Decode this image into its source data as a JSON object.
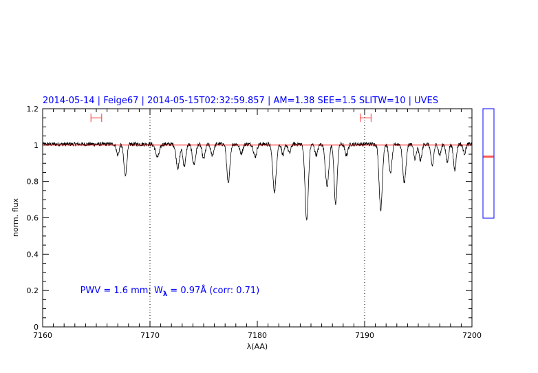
{
  "chart_data": {
    "type": "line",
    "title": "2014-05-14 | Feige67 | 2014-05-15T02:32:59.857 | AM=1.38 SEE=1.5 SLITW=10 | UVES",
    "xlabel": "λ(AA)",
    "ylabel": "norm. flux",
    "xlim": [
      7160,
      7200
    ],
    "ylim": [
      0,
      1.2
    ],
    "xticks": [
      "7160",
      "7170",
      "7180",
      "7190",
      "7200"
    ],
    "yticks": [
      "0",
      "0.2",
      "0.4",
      "0.6",
      "0.8",
      "1",
      "1.2"
    ],
    "annotation": {
      "pwv": "PWV = 1.6 mm; W",
      "sub": "λ",
      "rest": " = 0.97Å (corr: 0.71)",
      "x": 7163.5,
      "y": 0.2
    },
    "reference_lines_x": [
      7170,
      7190
    ],
    "continuum_level": 1.0,
    "series": [
      {
        "type": "absorption_lines",
        "continuum": 1.005,
        "lines": [
          {
            "x": 7167.7,
            "depth": 0.17,
            "width": 0.14
          },
          {
            "x": 7167.0,
            "depth": 0.06,
            "width": 0.12
          },
          {
            "x": 7170.7,
            "depth": 0.07,
            "width": 0.18
          },
          {
            "x": 7172.6,
            "depth": 0.13,
            "width": 0.16
          },
          {
            "x": 7173.2,
            "depth": 0.12,
            "width": 0.14
          },
          {
            "x": 7174.1,
            "depth": 0.11,
            "width": 0.16
          },
          {
            "x": 7175.0,
            "depth": 0.08,
            "width": 0.14
          },
          {
            "x": 7175.8,
            "depth": 0.06,
            "width": 0.14
          },
          {
            "x": 7177.3,
            "depth": 0.22,
            "width": 0.14
          },
          {
            "x": 7178.5,
            "depth": 0.05,
            "width": 0.14
          },
          {
            "x": 7179.8,
            "depth": 0.07,
            "width": 0.14
          },
          {
            "x": 7181.6,
            "depth": 0.26,
            "width": 0.16
          },
          {
            "x": 7182.4,
            "depth": 0.06,
            "width": 0.12
          },
          {
            "x": 7183.0,
            "depth": 0.05,
            "width": 0.12
          },
          {
            "x": 7184.6,
            "depth": 0.42,
            "width": 0.15
          },
          {
            "x": 7185.5,
            "depth": 0.06,
            "width": 0.14
          },
          {
            "x": 7186.5,
            "depth": 0.23,
            "width": 0.16
          },
          {
            "x": 7187.3,
            "depth": 0.33,
            "width": 0.14
          },
          {
            "x": 7188.3,
            "depth": 0.06,
            "width": 0.14
          },
          {
            "x": 7191.5,
            "depth": 0.36,
            "width": 0.15
          },
          {
            "x": 7192.4,
            "depth": 0.16,
            "width": 0.14
          },
          {
            "x": 7193.7,
            "depth": 0.21,
            "width": 0.15
          },
          {
            "x": 7194.7,
            "depth": 0.08,
            "width": 0.13
          },
          {
            "x": 7195.2,
            "depth": 0.09,
            "width": 0.13
          },
          {
            "x": 7196.3,
            "depth": 0.12,
            "width": 0.13
          },
          {
            "x": 7197.0,
            "depth": 0.06,
            "width": 0.12
          },
          {
            "x": 7197.7,
            "depth": 0.1,
            "width": 0.12
          },
          {
            "x": 7198.4,
            "depth": 0.14,
            "width": 0.13
          },
          {
            "x": 7199.3,
            "depth": 0.05,
            "width": 0.12
          }
        ]
      }
    ],
    "error_bar_markers": [
      {
        "x_left": 7164.5,
        "x_right": 7165.5,
        "y": 1.15
      },
      {
        "x_left": 7189.6,
        "x_right": 7190.6,
        "y": 1.15
      }
    ],
    "side_panel": {
      "ylim": [
        0.6,
        1.2
      ],
      "marks": [
        0.94,
        0.935
      ]
    },
    "colors": {
      "title": "#0000ff",
      "spectrum": "#000000",
      "continuum": "#ff0000",
      "marker": "#ff3333",
      "side_panel": "#0000ff"
    }
  }
}
